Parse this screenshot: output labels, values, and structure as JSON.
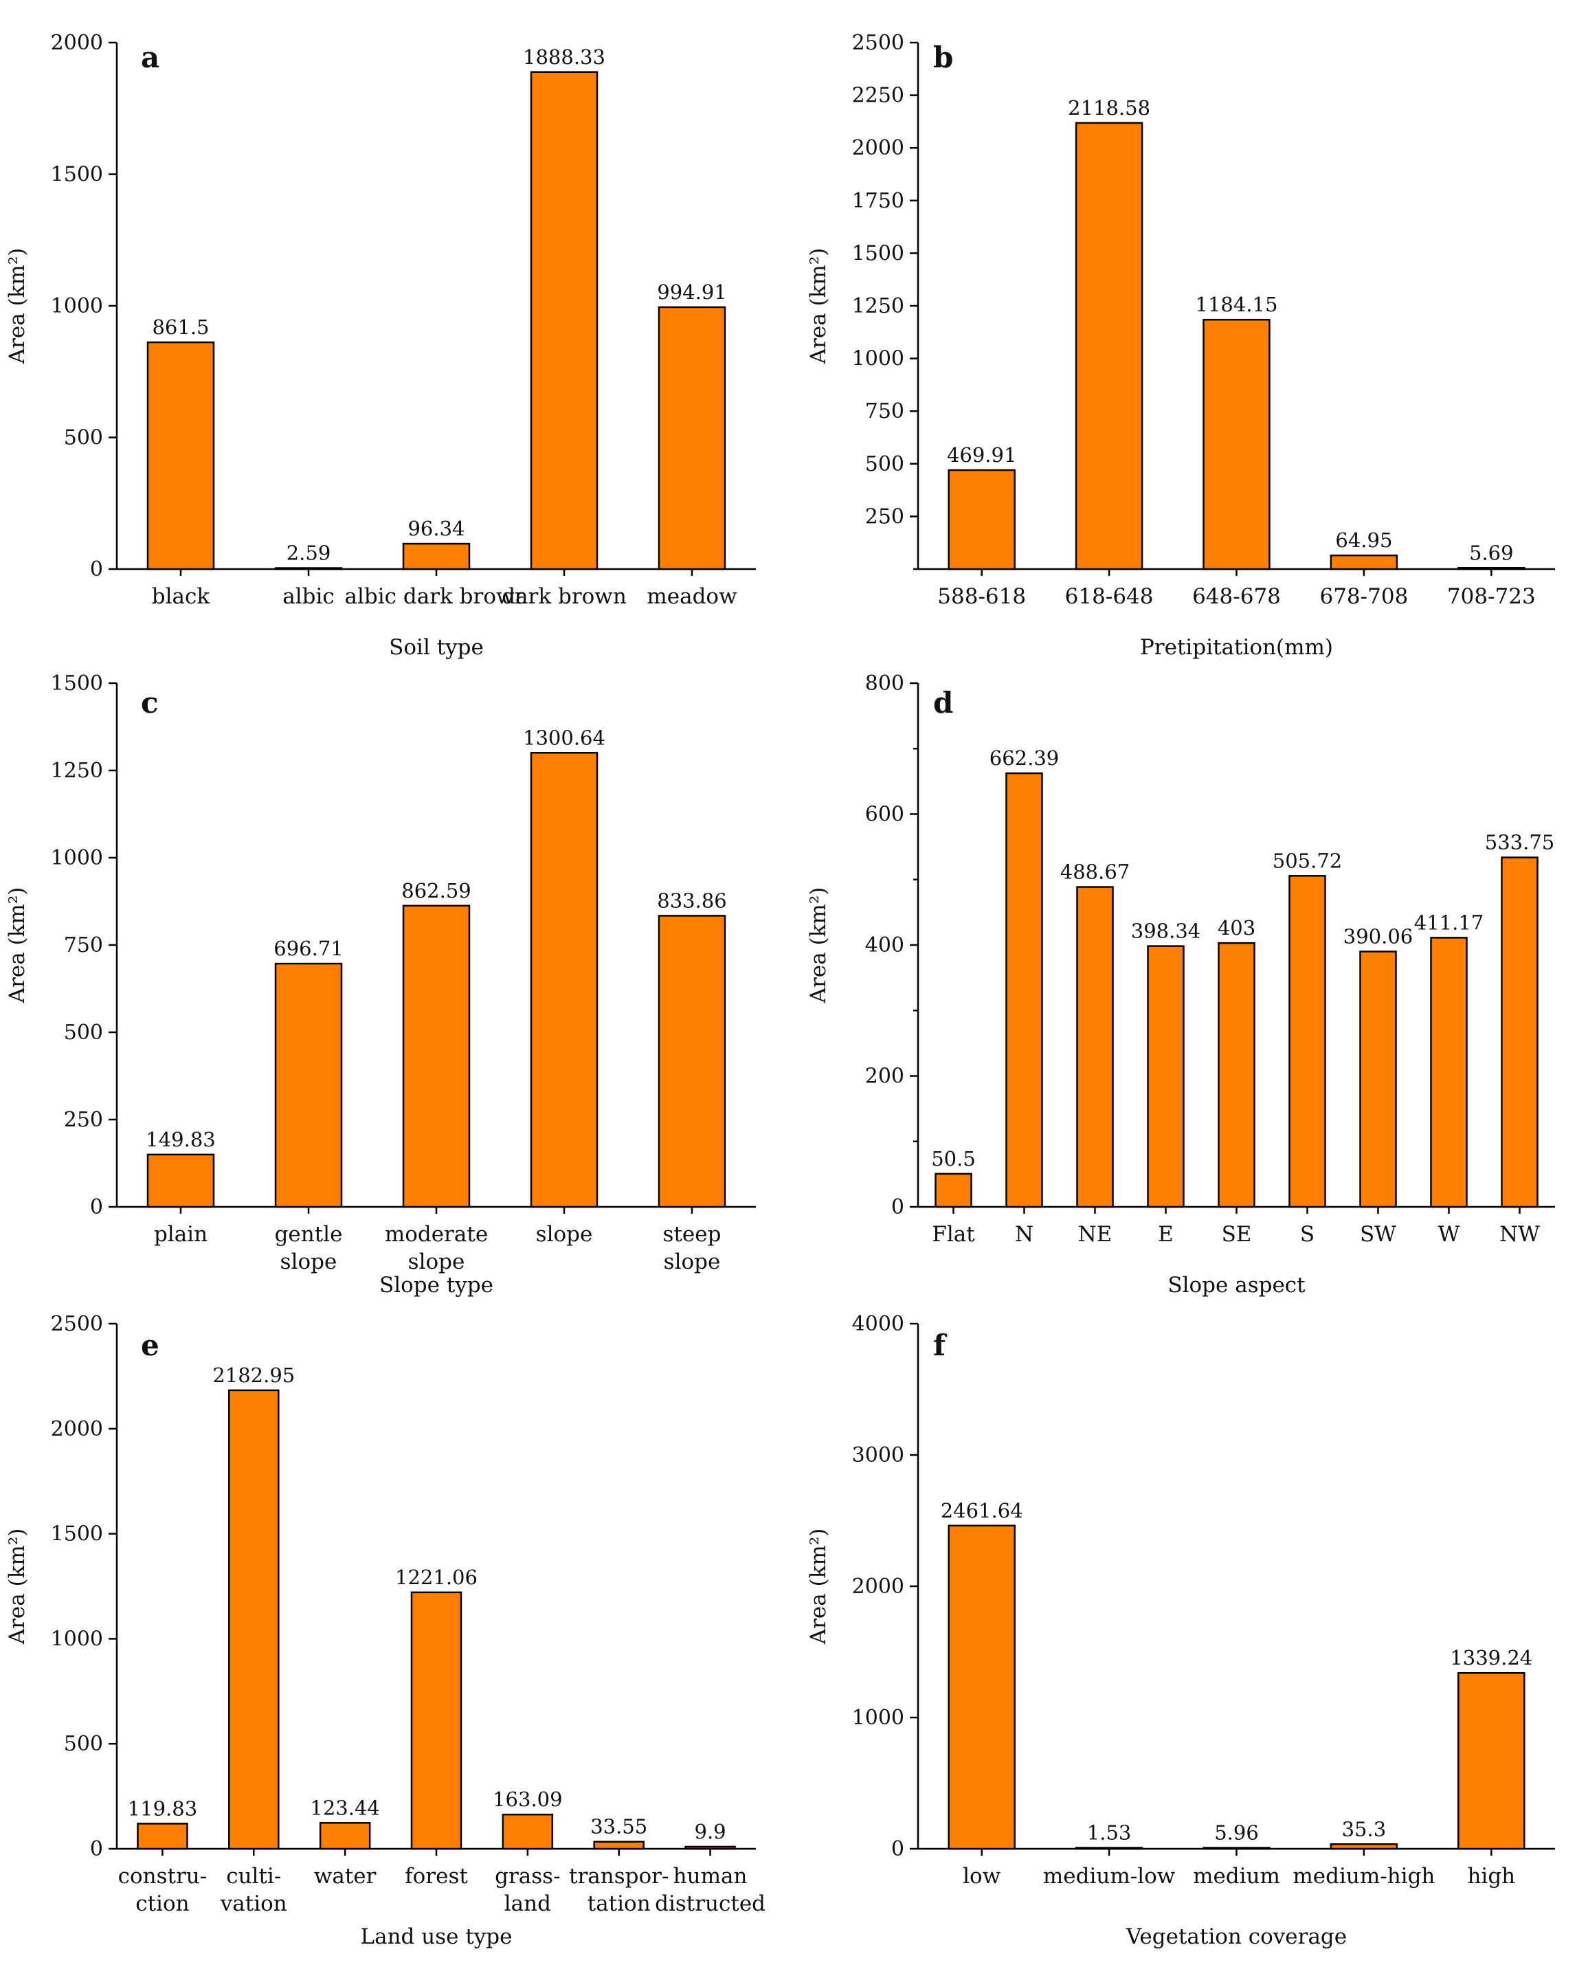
{
  "colors": {
    "bar_fill": "#ff8000",
    "bar_stroke": "#000000",
    "axis": "#000000"
  },
  "chart_data": [
    {
      "panel": "a",
      "type": "bar",
      "title": "",
      "xlabel": "Soil type",
      "ylabel": "Area (km²)",
      "categories": [
        "black",
        "albic",
        "albic dark brown",
        "dark brown",
        "meadow"
      ],
      "values": [
        861.5,
        2.59,
        96.34,
        1888.33,
        994.91
      ],
      "value_labels": [
        "861.5",
        "2.59",
        "96.34",
        "1888.33",
        "994.91"
      ],
      "ylim": [
        0,
        2000
      ],
      "yticks": [
        0,
        500,
        1000,
        1500,
        2000
      ],
      "yticks_labeled": [
        0,
        500,
        1000,
        1500,
        2000
      ]
    },
    {
      "panel": "b",
      "type": "bar",
      "title": "",
      "xlabel": "Pretipitation(mm)",
      "ylabel": "Area (km²)",
      "categories": [
        "588-618",
        "618-648",
        "648-678",
        "678-708",
        "708-723"
      ],
      "values": [
        469.91,
        2118.58,
        1184.15,
        64.95,
        5.69
      ],
      "value_labels": [
        "469.91",
        "2118.58",
        "1184.15",
        "64.95",
        "5.69"
      ],
      "ylim": [
        0,
        2500
      ],
      "yticks": [
        0,
        250,
        500,
        750,
        1000,
        1250,
        1500,
        1750,
        2000,
        2250,
        2500
      ],
      "yticks_labeled": [
        250,
        500,
        750,
        1000,
        1250,
        1500,
        1750,
        2000,
        2250,
        2500
      ]
    },
    {
      "panel": "c",
      "type": "bar",
      "title": "",
      "xlabel": "Slope type",
      "ylabel": "Area (km²)",
      "categories": [
        "plain",
        "gentle\nslope",
        "moderate\nslope",
        "slope",
        "steep\nslope"
      ],
      "values": [
        149.83,
        696.71,
        862.59,
        1300.64,
        833.86
      ],
      "value_labels": [
        "149.83",
        "696.71",
        "862.59",
        "1300.64",
        "833.86"
      ],
      "ylim": [
        0,
        1500
      ],
      "yticks": [
        0,
        250,
        500,
        750,
        1000,
        1250,
        1500
      ],
      "yticks_labeled": [
        0,
        250,
        500,
        750,
        1000,
        1250,
        1500
      ]
    },
    {
      "panel": "d",
      "type": "bar",
      "title": "",
      "xlabel": "Slope aspect",
      "ylabel": "Area (km²)",
      "categories": [
        "Flat",
        "N",
        "NE",
        "E",
        "SE",
        "S",
        "SW",
        "W",
        "NW"
      ],
      "values": [
        50.5,
        662.39,
        488.67,
        398.34,
        403,
        505.72,
        390.06,
        411.17,
        533.75
      ],
      "value_labels": [
        "50.5",
        "662.39",
        "488.67",
        "398.34",
        "403",
        "505.72",
        "390.06",
        "411.17",
        "533.75"
      ],
      "ylim": [
        0,
        800
      ],
      "yticks": [
        0,
        100,
        200,
        300,
        400,
        500,
        600,
        700,
        800
      ],
      "yticks_labeled": [
        0,
        200,
        400,
        600,
        800
      ]
    },
    {
      "panel": "e",
      "type": "bar",
      "title": "",
      "xlabel": "Land use type",
      "ylabel": "Area (km²)",
      "categories": [
        "constru-\nction",
        "culti-\nvation",
        "water",
        "forest",
        "grass-\nland",
        "transpor-\ntation",
        "human\ndistructed"
      ],
      "values": [
        119.83,
        2182.95,
        123.44,
        1221.06,
        163.09,
        33.55,
        9.9
      ],
      "value_labels": [
        "119.83",
        "2182.95",
        "123.44",
        "1221.06",
        "163.09",
        "33.55",
        "9.9"
      ],
      "ylim": [
        0,
        2500
      ],
      "yticks": [
        0,
        500,
        1000,
        1500,
        2000,
        2500
      ],
      "yticks_labeled": [
        0,
        500,
        1000,
        1500,
        2000,
        2500
      ]
    },
    {
      "panel": "f",
      "type": "bar",
      "title": "",
      "xlabel": "Vegetation coverage",
      "ylabel": "Area (km²)",
      "categories": [
        "low",
        "medium-low",
        "medium",
        "medium-high",
        "high"
      ],
      "values": [
        2461.64,
        1.53,
        5.96,
        35.3,
        1339.24
      ],
      "value_labels": [
        "2461.64",
        "1.53",
        "5.96",
        "35.3",
        "1339.24"
      ],
      "ylim": [
        0,
        4000
      ],
      "yticks": [
        0,
        1000,
        2000,
        3000,
        4000
      ],
      "yticks_labeled": [
        0,
        1000,
        2000,
        3000,
        4000
      ]
    }
  ]
}
